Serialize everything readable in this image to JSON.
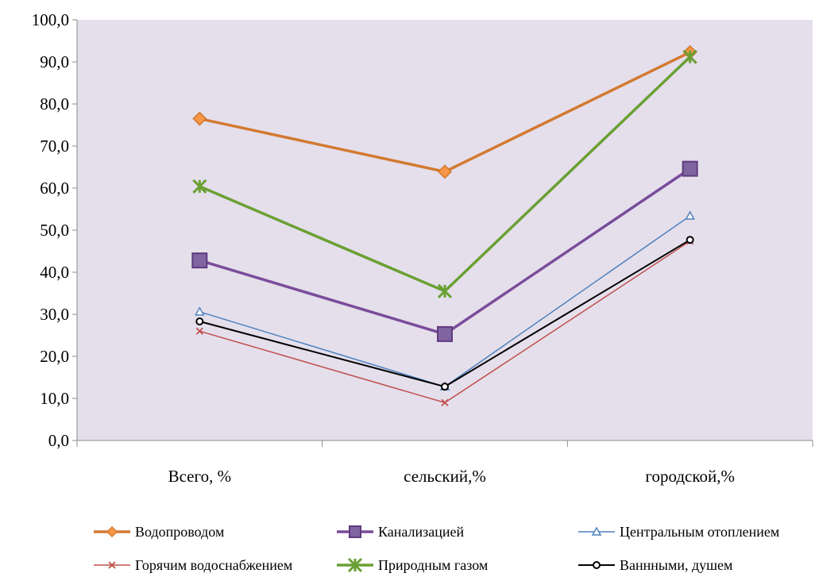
{
  "chart_data": {
    "type": "line",
    "categories": [
      "Всего, %",
      "сельский,%",
      "городской,%"
    ],
    "y_tick_labels": [
      "0,0",
      "10,0",
      "20,0",
      "30,0",
      "40,0",
      "50,0",
      "60,0",
      "70,0",
      "80,0",
      "90,0",
      "100,0"
    ],
    "ylim": [
      0,
      100
    ],
    "grid": false,
    "plot_background": "#e5dfec",
    "legend_position": "bottom",
    "series": [
      {
        "name": "Водопроводом",
        "values": [
          76.5,
          63.9,
          92.3
        ],
        "color": "#d27a30",
        "marker": "diamond"
      },
      {
        "name": "Канализацией",
        "values": [
          42.8,
          25.3,
          64.6
        ],
        "color": "#7a4c9a",
        "marker": "square"
      },
      {
        "name": "Центральным отоплением",
        "values": [
          30.6,
          12.8,
          53.4
        ],
        "color": "#4f81bd",
        "marker": "triangle"
      },
      {
        "name": "Горячим водоснабжением",
        "values": [
          26.0,
          9.0,
          47.4
        ],
        "color": "#c0504d",
        "marker": "x"
      },
      {
        "name": "Природным газом",
        "values": [
          60.4,
          35.5,
          91.2
        ],
        "color": "#6aa033",
        "marker": "star"
      },
      {
        "name": "Ваннными, душем",
        "values": [
          28.3,
          12.8,
          47.7
        ],
        "color": "#000000",
        "marker": "circle"
      }
    ]
  }
}
